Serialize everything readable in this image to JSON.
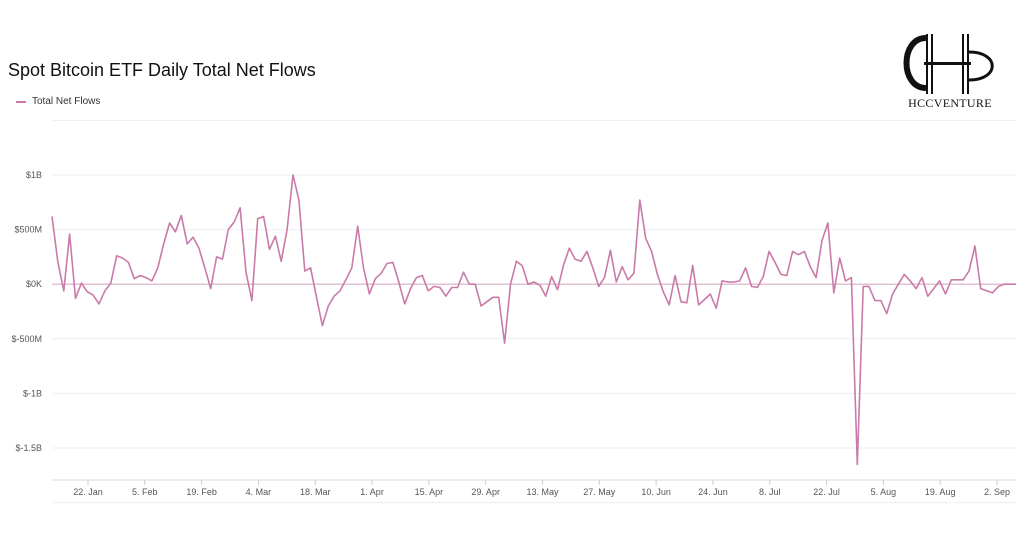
{
  "logo": {
    "name": "HCCVENTURE"
  },
  "chart_data": {
    "type": "line",
    "title": "Spot Bitcoin ETF Daily Total Net Flows",
    "legend": "top-left",
    "grid": true,
    "ylim": [
      -1800,
      1050
    ],
    "yunit": "$M",
    "y_ticks": [
      {
        "value": 1000,
        "label": "$1B"
      },
      {
        "value": 500,
        "label": "$500M"
      },
      {
        "value": 0,
        "label": "$0K"
      },
      {
        "value": -500,
        "label": "$-500M"
      },
      {
        "value": -1000,
        "label": "$-1B"
      },
      {
        "value": -1500,
        "label": "$-1.5B"
      }
    ],
    "x_ticks": [
      "22. Jan",
      "5. Feb",
      "19. Feb",
      "4. Mar",
      "18. Mar",
      "1. Apr",
      "15. Apr",
      "29. Apr",
      "13. May",
      "27. May",
      "10. Jun",
      "24. Jun",
      "8. Jul",
      "22. Jul",
      "5. Aug",
      "19. Aug",
      "2. Sep"
    ],
    "series": [
      {
        "name": "Total Net Flows",
        "color": "#c97aa8",
        "values": [
          620,
          200,
          -60,
          460,
          -130,
          10,
          -70,
          -100,
          -180,
          -60,
          10,
          260,
          240,
          200,
          50,
          80,
          60,
          30,
          150,
          370,
          560,
          480,
          630,
          370,
          430,
          330,
          150,
          -40,
          250,
          230,
          500,
          570,
          700,
          110,
          -150,
          600,
          620,
          320,
          440,
          210,
          500,
          1000,
          770,
          120,
          150,
          -120,
          -380,
          -200,
          -110,
          -60,
          40,
          150,
          530,
          150,
          -90,
          50,
          100,
          190,
          200,
          20,
          -180,
          -40,
          60,
          80,
          -60,
          -20,
          -30,
          -110,
          -30,
          -30,
          110,
          0,
          0,
          -200,
          -160,
          -120,
          -120,
          -540,
          0,
          210,
          170,
          0,
          20,
          -10,
          -110,
          70,
          -50,
          170,
          330,
          230,
          210,
          300,
          150,
          -20,
          60,
          310,
          20,
          160,
          40,
          100,
          770,
          420,
          300,
          90,
          -70,
          -190,
          80,
          -160,
          -170,
          170,
          -190,
          -140,
          -90,
          -220,
          30,
          20,
          20,
          30,
          150,
          -20,
          -30,
          70,
          300,
          200,
          90,
          80,
          300,
          270,
          300,
          160,
          60,
          400,
          560,
          -80,
          240,
          30,
          60,
          -1650,
          -20,
          -20,
          -150,
          -150,
          -270,
          -90,
          0,
          90,
          30,
          -40,
          60,
          -110,
          -40,
          30,
          -90,
          40,
          40,
          40,
          120,
          350,
          -40,
          -60,
          -80,
          -20,
          0,
          0,
          0
        ]
      }
    ]
  }
}
